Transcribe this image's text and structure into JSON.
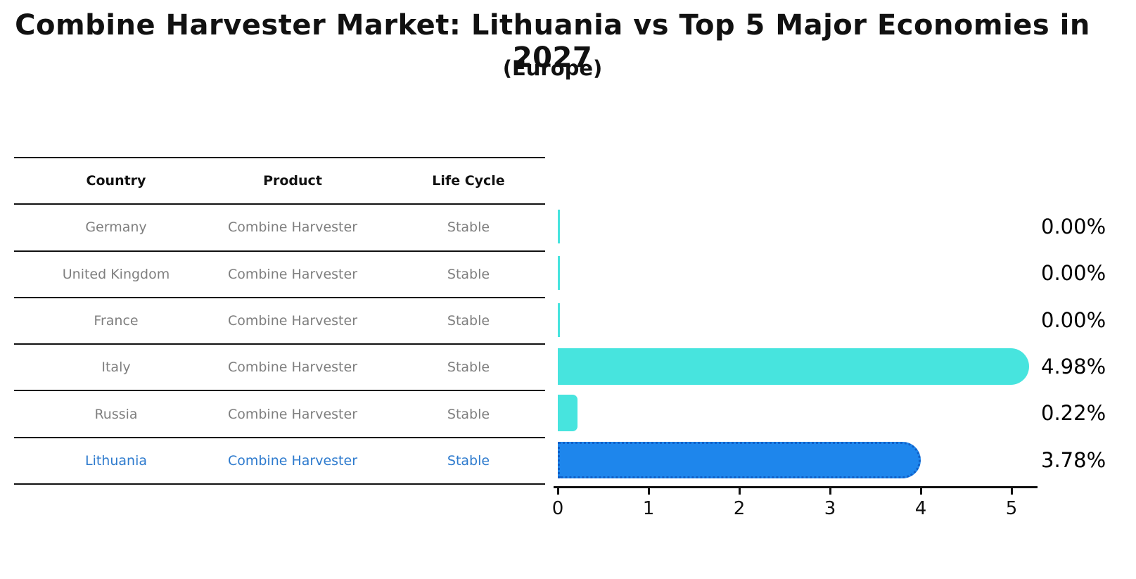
{
  "title": "Combine Harvester Market: Lithuania vs Top 5 Major Economies in 2027",
  "subtitle": "(Europe)",
  "table": {
    "headers": [
      "Country",
      "Product",
      "Life Cycle"
    ],
    "rows": [
      {
        "country": "Germany",
        "product": "Combine Harvester",
        "life_cycle": "Stable",
        "highlight": false
      },
      {
        "country": "United Kingdom",
        "product": "Combine Harvester",
        "life_cycle": "Stable",
        "highlight": false
      },
      {
        "country": "France",
        "product": "Combine Harvester",
        "life_cycle": "Stable",
        "highlight": false
      },
      {
        "country": "Italy",
        "product": "Combine Harvester",
        "life_cycle": "Stable",
        "highlight": false
      },
      {
        "country": "Russia",
        "product": "Combine Harvester",
        "life_cycle": "Stable",
        "highlight": false
      },
      {
        "country": "Lithuania",
        "product": "Combine Harvester",
        "life_cycle": "Stable",
        "highlight": true
      }
    ]
  },
  "chart_data": {
    "type": "bar",
    "orientation": "horizontal",
    "title": "Combine Harvester Market: Lithuania vs Top 5 Major Economies in 2027",
    "subtitle": "(Europe)",
    "categories": [
      "Germany",
      "United Kingdom",
      "France",
      "Italy",
      "Russia",
      "Lithuania"
    ],
    "values": [
      0.0,
      0.0,
      0.0,
      4.98,
      0.22,
      3.78
    ],
    "value_labels": [
      "0.00%",
      "0.00%",
      "0.00%",
      "4.98%",
      "0.22%",
      "3.78%"
    ],
    "xlim": [
      0,
      5.3
    ],
    "xticks": [
      0,
      1,
      2,
      3,
      4,
      5
    ],
    "xtick_labels": [
      "0",
      "1",
      "2",
      "3",
      "4",
      "5"
    ],
    "grid": false,
    "legend": false,
    "highlight_index": 5,
    "units": "percent"
  },
  "colors": {
    "ink": "#111111",
    "bar_teal": "#47E4DE",
    "bar_blue": "#1E86EC",
    "bar_blue_edge": "#1060C8",
    "table_text_gray": "#7f7f7f",
    "highlight_text_blue": "#2E7BCE"
  }
}
